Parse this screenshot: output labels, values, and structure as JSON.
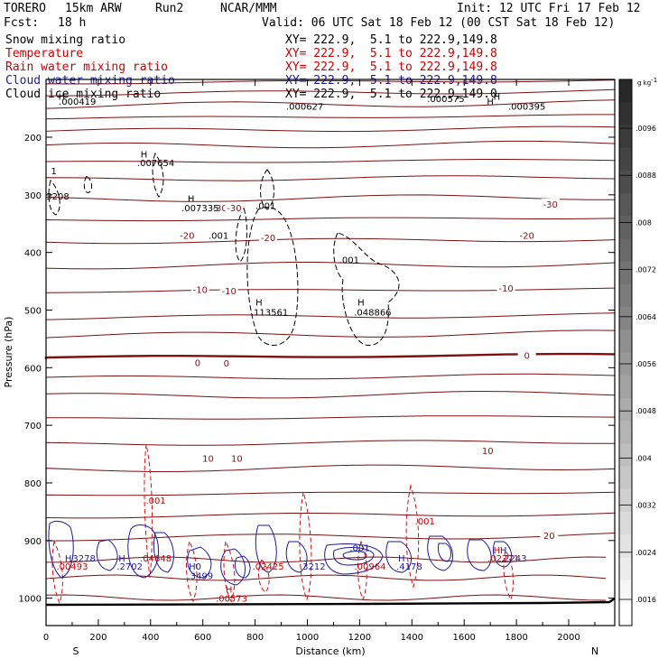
{
  "header": {
    "model": "TORERO",
    "resolution": "15km ARW",
    "run": "Run2",
    "org": "NCAR/MMM",
    "init": "Init: 12 UTC Fri 17 Feb 12",
    "fcst_label": "Fcst:",
    "fcst_value": "18 h",
    "valid": "Valid: 06 UTC Sat 18 Feb 12 (00 CST Sat 18 Feb 12)"
  },
  "fields": [
    {
      "name": "Snow mixing ratio",
      "xy": "XY= 222.9,  5.1 to 222.9,149.8",
      "color": "#000000"
    },
    {
      "name": "Temperature",
      "xy": "XY= 222.9,  5.1 to 222.9,149.8",
      "color": "#cc0000"
    },
    {
      "name": "Rain water mixing ratio",
      "xy": "XY= 222.9,  5.1 to 222.9,149.8",
      "color": "#cc0000"
    },
    {
      "name": "Cloud water mixing ratio",
      "xy": "XY= 222.9,  5.1 to 222.9,149.8",
      "color": "#1a1aa8"
    },
    {
      "name": "Cloud ice mixing ratio",
      "xy": "XY= 222.9,  5.1 to 222.9,149.0",
      "color": "#000000"
    }
  ],
  "chart_data": {
    "type": "contour-cross-section",
    "xlabel": "Distance (km)",
    "ylabel": "Pressure (hPa)",
    "xlim": [
      0,
      2190
    ],
    "ylim": [
      1045,
      100
    ],
    "x_ticks": [
      "0",
      "200",
      "400",
      "600",
      "800",
      "1000",
      "1200",
      "1400",
      "1600",
      "1800",
      "2000"
    ],
    "y_ticks": [
      "200",
      "300",
      "400",
      "500",
      "600",
      "700",
      "800",
      "900",
      "1000"
    ],
    "endpoint_labels": {
      "start": "S",
      "end": "N"
    },
    "colorbar": {
      "unit": "g kg",
      "unit_sup": "-1",
      "labels": [
        ".0096",
        ".0088",
        ".008",
        ".0072",
        ".0064",
        ".0056",
        ".0048",
        ".004",
        ".0032",
        ".0024",
        ".0016"
      ]
    },
    "temperature_contours": [
      {
        "label": "-30",
        "km": 1930,
        "hpa": 316
      },
      {
        "label": "-30",
        "km": 665,
        "hpa": 322
      },
      {
        "label": "-30",
        "km": 720,
        "hpa": 322
      },
      {
        "label": "-20",
        "km": 1840,
        "hpa": 370
      },
      {
        "label": "-20",
        "km": 540,
        "hpa": 370
      },
      {
        "label": "-20",
        "km": 850,
        "hpa": 374
      },
      {
        "label": "-10",
        "km": 1760,
        "hpa": 462
      },
      {
        "label": "-10",
        "km": 590,
        "hpa": 464
      },
      {
        "label": "-10",
        "km": 700,
        "hpa": 466
      },
      {
        "label": "0",
        "km": 1840,
        "hpa": 578
      },
      {
        "label": "0",
        "km": 580,
        "hpa": 591
      },
      {
        "label": "0",
        "km": 690,
        "hpa": 592
      },
      {
        "label": "10",
        "km": 1690,
        "hpa": 744
      },
      {
        "label": "10",
        "km": 620,
        "hpa": 757
      },
      {
        "label": "10",
        "km": 730,
        "hpa": 757
      },
      {
        "label": "20",
        "km": 1925,
        "hpa": 891
      }
    ],
    "annotations": [
      {
        "text": "H",
        "km": 60,
        "hpa": 129,
        "color": "#000000"
      },
      {
        "text": ".000419",
        "km": 120,
        "hpa": 137,
        "color": "#000000"
      },
      {
        "text": "H",
        "km": 1725,
        "hpa": 129,
        "color": "#000000"
      },
      {
        "text": ".000575",
        "km": 1530,
        "hpa": 133,
        "color": "#000000"
      },
      {
        "text": "H",
        "km": 1700,
        "hpa": 137,
        "color": "#000000"
      },
      {
        "text": ".000395",
        "km": 1840,
        "hpa": 146,
        "color": "#000000"
      },
      {
        "text": ".000627",
        "km": 990,
        "hpa": 146,
        "color": "#000000"
      },
      {
        "text": "H",
        "km": 375,
        "hpa": 229,
        "color": "#000000"
      },
      {
        "text": ".007654",
        "km": 420,
        "hpa": 244,
        "color": "#000000"
      },
      {
        "text": "1",
        "km": 30,
        "hpa": 258,
        "color": "#000000"
      },
      {
        "text": "3208",
        "km": 45,
        "hpa": 302,
        "color": "#000000"
      },
      {
        "text": "H",
        "km": 555,
        "hpa": 306,
        "color": "#000000"
      },
      {
        "text": ".007335",
        "km": 590,
        "hpa": 322,
        "color": "#000000"
      },
      {
        "text": ".001",
        "km": 840,
        "hpa": 318,
        "color": "#000000"
      },
      {
        "text": ".001",
        "km": 660,
        "hpa": 370,
        "color": "#000000"
      },
      {
        "text": ".001",
        "km": 1160,
        "hpa": 412,
        "color": "#000000"
      },
      {
        "text": "H",
        "km": 815,
        "hpa": 486,
        "color": "#000000"
      },
      {
        "text": ".113561",
        "km": 855,
        "hpa": 503,
        "color": "#000000"
      },
      {
        "text": "H",
        "km": 1205,
        "hpa": 486,
        "color": "#000000"
      },
      {
        "text": ".048866",
        "km": 1250,
        "hpa": 503,
        "color": "#000000"
      },
      {
        "text": ".001",
        "km": 420,
        "hpa": 830,
        "color": "#cc0000"
      },
      {
        "text": ".001",
        "km": 1450,
        "hpa": 866,
        "color": "#cc0000"
      },
      {
        "text": "H",
        "km": 85,
        "hpa": 930,
        "color": "#1a1aa8"
      },
      {
        "text": ".3278",
        "km": 140,
        "hpa": 930,
        "color": "#1a1aa8"
      },
      {
        "text": ".00493",
        "km": 100,
        "hpa": 944,
        "color": "#cc0000"
      },
      {
        "text": "H",
        "km": 290,
        "hpa": 930,
        "color": "#1a1aa8"
      },
      {
        "text": ".2702",
        "km": 320,
        "hpa": 944,
        "color": "#1a1aa8"
      },
      {
        "text": ".04648",
        "km": 420,
        "hpa": 930,
        "color": "#cc0000"
      },
      {
        "text": "H0",
        "km": 570,
        "hpa": 944,
        "color": "#1a1aa8"
      },
      {
        "text": ".3499",
        "km": 590,
        "hpa": 961,
        "color": "#1a1aa8"
      },
      {
        "text": ".02425",
        "km": 850,
        "hpa": 944,
        "color": "#cc0000"
      },
      {
        "text": ".3212",
        "km": 1020,
        "hpa": 944,
        "color": "#1a1aa8"
      },
      {
        "text": ".001",
        "km": 1200,
        "hpa": 912,
        "color": "#1a1aa8"
      },
      {
        "text": ".00964",
        "km": 1240,
        "hpa": 944,
        "color": "#cc0000"
      },
      {
        "text": "H",
        "km": 1360,
        "hpa": 930,
        "color": "#1a1aa8"
      },
      {
        "text": ".4178",
        "km": 1390,
        "hpa": 944,
        "color": "#1a1aa8"
      },
      {
        "text": "H",
        "km": 1725,
        "hpa": 916,
        "color": "#cc0000"
      },
      {
        "text": "H",
        "km": 1750,
        "hpa": 916,
        "color": "#1a1aa8"
      },
      {
        "text": ".02271",
        "km": 1750,
        "hpa": 930,
        "color": "#cc0000"
      },
      {
        "text": ".2243",
        "km": 1790,
        "hpa": 930,
        "color": "#1a1aa8"
      },
      {
        "text": "H",
        "km": 700,
        "hpa": 984,
        "color": "#cc0000"
      },
      {
        "text": ".00573",
        "km": 710,
        "hpa": 1000,
        "color": "#cc0000"
      }
    ]
  }
}
